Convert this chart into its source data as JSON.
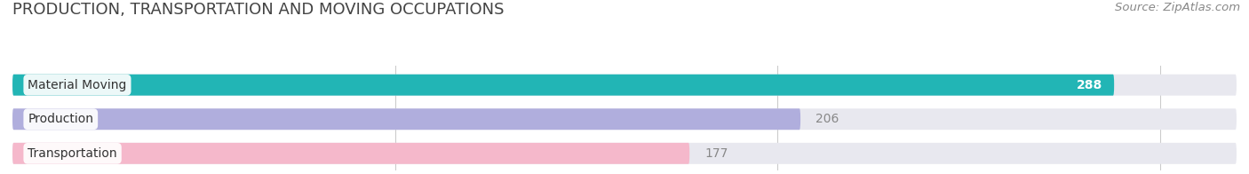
{
  "title": "PRODUCTION, TRANSPORTATION AND MOVING OCCUPATIONS",
  "source": "Source: ZipAtlas.com",
  "categories": [
    "Material Moving",
    "Production",
    "Transportation"
  ],
  "values": [
    288,
    206,
    177
  ],
  "bar_colors": [
    "#22b5b5",
    "#b0aedd",
    "#f5b8cb"
  ],
  "bar_bg_color": "#e8e8ef",
  "value_inside": [
    true,
    false,
    false
  ],
  "value_colors_inside": "#ffffff",
  "value_colors_outside": "#888888",
  "xlim": [
    0,
    320
  ],
  "xticks": [
    100,
    200,
    300
  ],
  "title_fontsize": 13,
  "source_fontsize": 9.5,
  "label_fontsize": 10,
  "value_fontsize": 10,
  "background_color": "#ffffff",
  "bar_height": 0.62,
  "figsize": [
    14.06,
    1.96
  ],
  "dpi": 100
}
